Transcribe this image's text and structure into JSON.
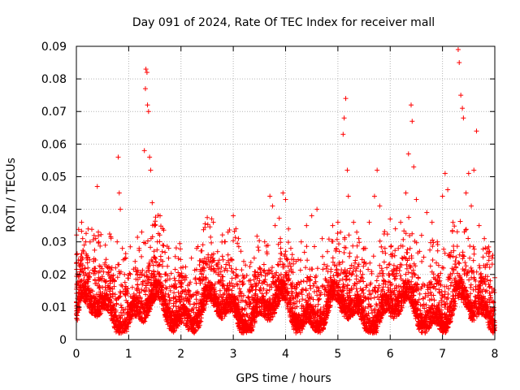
{
  "chart_data": {
    "type": "scatter",
    "title": "Day 091 of 2024, Rate Of TEC Index for receiver mall",
    "xlabel": "GPS time / hours",
    "ylabel": "ROTI / TECUs",
    "xlim": [
      0,
      8
    ],
    "ylim": [
      0,
      0.09
    ],
    "x_ticks": [
      0,
      1,
      2,
      3,
      4,
      5,
      6,
      7,
      8
    ],
    "x_tick_labels": [
      "0",
      "1",
      "2",
      "3",
      "4",
      "5",
      "6",
      "7",
      "8"
    ],
    "y_ticks": [
      0,
      0.01,
      0.02,
      0.03,
      0.04,
      0.05,
      0.06,
      0.07,
      0.08,
      0.09
    ],
    "y_tick_labels": [
      "0",
      "0.01",
      "0.02",
      "0.03",
      "0.04",
      "0.05",
      "0.06",
      "0.07",
      "0.08",
      "0.09"
    ],
    "grid": true,
    "marker": "+",
    "marker_color": "#ff0000",
    "series": [
      {
        "name": "ROTI",
        "points": [
          [
            0.02,
            0.006
          ],
          [
            0.05,
            0.009
          ],
          [
            0.08,
            0.012
          ],
          [
            0.1,
            0.036
          ],
          [
            0.12,
            0.031
          ],
          [
            0.15,
            0.029
          ],
          [
            0.18,
            0.03
          ],
          [
            0.2,
            0.025
          ],
          [
            0.22,
            0.022
          ],
          [
            0.25,
            0.015
          ],
          [
            0.28,
            0.011
          ],
          [
            0.3,
            0.008
          ],
          [
            0.35,
            0.012
          ],
          [
            0.4,
            0.047
          ],
          [
            0.42,
            0.033
          ],
          [
            0.45,
            0.021
          ],
          [
            0.5,
            0.016
          ],
          [
            0.55,
            0.012
          ],
          [
            0.6,
            0.009
          ],
          [
            0.65,
            0.018
          ],
          [
            0.7,
            0.014
          ],
          [
            0.75,
            0.022
          ],
          [
            0.78,
            0.03
          ],
          [
            0.8,
            0.056
          ],
          [
            0.82,
            0.045
          ],
          [
            0.84,
            0.04
          ],
          [
            0.88,
            0.028
          ],
          [
            0.92,
            0.02
          ],
          [
            0.95,
            0.012
          ],
          [
            1.0,
            0.006
          ],
          [
            1.05,
            0.009
          ],
          [
            1.1,
            0.014
          ],
          [
            1.15,
            0.021
          ],
          [
            1.2,
            0.028
          ],
          [
            1.25,
            0.033
          ],
          [
            1.3,
            0.058
          ],
          [
            1.32,
            0.077
          ],
          [
            1.33,
            0.083
          ],
          [
            1.35,
            0.082
          ],
          [
            1.36,
            0.072
          ],
          [
            1.38,
            0.07
          ],
          [
            1.4,
            0.056
          ],
          [
            1.42,
            0.052
          ],
          [
            1.45,
            0.042
          ],
          [
            1.5,
            0.035
          ],
          [
            1.55,
            0.03
          ],
          [
            1.6,
            0.038
          ],
          [
            1.65,
            0.024
          ],
          [
            1.7,
            0.018
          ],
          [
            1.8,
            0.012
          ],
          [
            1.9,
            0.016
          ],
          [
            2.0,
            0.022
          ],
          [
            2.1,
            0.019
          ],
          [
            2.2,
            0.025
          ],
          [
            2.3,
            0.028
          ],
          [
            2.4,
            0.021
          ],
          [
            2.5,
            0.016
          ],
          [
            2.6,
            0.024
          ],
          [
            2.7,
            0.027
          ],
          [
            2.8,
            0.018
          ],
          [
            2.9,
            0.026
          ],
          [
            3.0,
            0.038
          ],
          [
            3.05,
            0.034
          ],
          [
            3.1,
            0.031
          ],
          [
            3.2,
            0.024
          ],
          [
            3.3,
            0.018
          ],
          [
            3.4,
            0.025
          ],
          [
            3.5,
            0.022
          ],
          [
            3.6,
            0.03
          ],
          [
            3.7,
            0.044
          ],
          [
            3.75,
            0.041
          ],
          [
            3.8,
            0.035
          ],
          [
            3.9,
            0.031
          ],
          [
            3.95,
            0.045
          ],
          [
            4.0,
            0.043
          ],
          [
            4.1,
            0.028
          ],
          [
            4.2,
            0.024
          ],
          [
            4.3,
            0.03
          ],
          [
            4.4,
            0.035
          ],
          [
            4.5,
            0.038
          ],
          [
            4.6,
            0.04
          ],
          [
            4.7,
            0.031
          ],
          [
            4.8,
            0.027
          ],
          [
            4.9,
            0.035
          ],
          [
            5.0,
            0.036
          ],
          [
            5.1,
            0.063
          ],
          [
            5.12,
            0.068
          ],
          [
            5.15,
            0.074
          ],
          [
            5.18,
            0.052
          ],
          [
            5.2,
            0.044
          ],
          [
            5.3,
            0.036
          ],
          [
            5.4,
            0.031
          ],
          [
            5.5,
            0.028
          ],
          [
            5.6,
            0.036
          ],
          [
            5.7,
            0.044
          ],
          [
            5.75,
            0.052
          ],
          [
            5.8,
            0.041
          ],
          [
            5.9,
            0.028
          ],
          [
            6.0,
            0.037
          ],
          [
            6.1,
            0.034
          ],
          [
            6.2,
            0.036
          ],
          [
            6.3,
            0.045
          ],
          [
            6.35,
            0.057
          ],
          [
            6.4,
            0.072
          ],
          [
            6.42,
            0.067
          ],
          [
            6.45,
            0.053
          ],
          [
            6.5,
            0.043
          ],
          [
            6.6,
            0.032
          ],
          [
            6.7,
            0.039
          ],
          [
            6.8,
            0.036
          ],
          [
            6.9,
            0.03
          ],
          [
            7.0,
            0.044
          ],
          [
            7.05,
            0.051
          ],
          [
            7.1,
            0.046
          ],
          [
            7.2,
            0.036
          ],
          [
            7.3,
            0.089
          ],
          [
            7.32,
            0.085
          ],
          [
            7.35,
            0.075
          ],
          [
            7.38,
            0.071
          ],
          [
            7.4,
            0.068
          ],
          [
            7.45,
            0.045
          ],
          [
            7.5,
            0.051
          ],
          [
            7.55,
            0.041
          ],
          [
            7.6,
            0.052
          ],
          [
            7.65,
            0.064
          ],
          [
            7.7,
            0.035
          ],
          [
            7.8,
            0.031
          ],
          [
            7.9,
            0.027
          ],
          [
            7.95,
            0.025
          ],
          [
            8.0,
            0.019
          ]
        ]
      }
    ]
  }
}
